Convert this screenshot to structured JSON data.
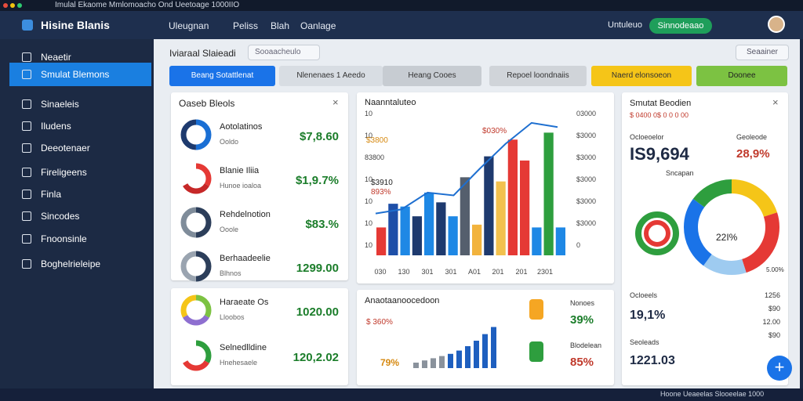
{
  "window": {
    "title": "Imulal Ekaome Mmlomoacho Ond Ueetoage 1000IIO"
  },
  "nav": {
    "brand": "Hisine Blanis",
    "menu": [
      "Uleugnan",
      "Peliss",
      "Blah",
      "Oanlage"
    ],
    "user": "Untuleuo",
    "action": "Sinnodeaao"
  },
  "sidebar": {
    "items": [
      "Neaetir",
      "Smulat Blemons",
      "Sinaeleis",
      "Iludens",
      "Deeotenaer",
      "Fireligeens",
      "Finla",
      "Sincodes",
      "Fnoonsinle",
      "Boghelrieleipe"
    ]
  },
  "header": {
    "title": "Iviaraal Slaieadi",
    "search": "Sooaacheulo",
    "button": "Seaainer"
  },
  "tabs": [
    "Beang Sotattlenat",
    "Nlenenaes 1 Aeedo",
    "Heang Cooes",
    "Repoel loondnaiis",
    "Naerd elonsoeon",
    "Doonee"
  ],
  "left_panel": {
    "title": "Oaseb Bleols",
    "items": [
      {
        "label": "Aotolatinos",
        "sub": "Ooldo",
        "value": "$7,8.60"
      },
      {
        "label": "Blanie Iliia",
        "sub": "Hunoe ioaloa",
        "value": "$1,9.7%"
      },
      {
        "label": "Rehdelnotion",
        "sub": "Ooole",
        "value": "$83.%"
      },
      {
        "label": "Berhaadeelie",
        "sub": "Blhnos",
        "value": "1299.00"
      }
    ]
  },
  "left_panel2": {
    "items": [
      {
        "label": "Haraeate Os",
        "sub": "Lloobos",
        "value": "1020.00"
      },
      {
        "label": "Selnedlldine",
        "sub": "Hnehesaele",
        "value": "120,2.02"
      }
    ]
  },
  "chart": {
    "title": "Naanntaluteo",
    "annotations": [
      "$030%",
      "$3800",
      "$3910",
      "893%"
    ],
    "left_labels": [
      "10",
      "10",
      "83800",
      "10",
      "10",
      "10",
      "10"
    ],
    "right_labels": [
      "03000",
      "$3000",
      "$3000",
      "$3000",
      "$3000",
      "$3000",
      "0"
    ],
    "x_labels": [
      "030",
      "130",
      "301",
      "301",
      "A01",
      "201",
      "201",
      "2301"
    ],
    "ylim": [
      0,
      100
    ],
    "bars": [
      {
        "color": "#e53935",
        "value": 20
      },
      {
        "color": "#1e4fa8",
        "value": 37
      },
      {
        "color": "#1e88e5",
        "value": 35
      },
      {
        "color": "#1e3a6e",
        "value": 28
      },
      {
        "color": "#1e88e5",
        "value": 45
      },
      {
        "color": "#1e3a6e",
        "value": 38
      },
      {
        "color": "#1e88e5",
        "value": 28
      },
      {
        "color": "#555f6d",
        "value": 56
      },
      {
        "color": "#f2b33d",
        "value": 22
      },
      {
        "color": "#1e3a6e",
        "value": 71
      },
      {
        "color": "#f2c14e",
        "value": 53
      },
      {
        "color": "#e53935",
        "value": 83
      },
      {
        "color": "#e53935",
        "value": 68
      },
      {
        "color": "#1e88e5",
        "value": 20
      },
      {
        "color": "#2e9e3e",
        "value": 88
      },
      {
        "color": "#1e88e5",
        "value": 20
      }
    ],
    "line": {
      "color": "#1e6fd0",
      "values": [
        30,
        33,
        45,
        43,
        62,
        80,
        95,
        92
      ]
    }
  },
  "lower_chart": {
    "title": "Anaotaanoocedoon",
    "annotations": [
      "$ 360%",
      "79%"
    ],
    "ylim": [
      0,
      100
    ],
    "values": [
      10,
      14,
      18,
      22,
      26,
      32,
      40,
      50,
      62,
      75
    ],
    "color": "#1e5fbf",
    "items": [
      {
        "label": "Nonoes",
        "value": "39%"
      },
      {
        "label": "Blodelean",
        "value": "85%"
      }
    ]
  },
  "right_panel": {
    "title": "Smutat Beodien",
    "sub": "$ 0400 0$ 0 0 0 00",
    "left_head": "Ocloeoelor",
    "right_head": "Geoleode",
    "big_value": "IS9,694",
    "side_value": "28,9%",
    "donut_label": "Sncapan",
    "center_value": "22I%",
    "foot": "5.00%",
    "items": [
      {
        "label": "Ocloeels",
        "value": "19,1%"
      },
      {
        "label": "Seoleads",
        "value": "1221.03"
      }
    ],
    "side_numbers": [
      "1256",
      "$90",
      "12.00",
      "$90"
    ]
  },
  "status": "Hoone Ueaeelas Slooeelae 1000"
}
